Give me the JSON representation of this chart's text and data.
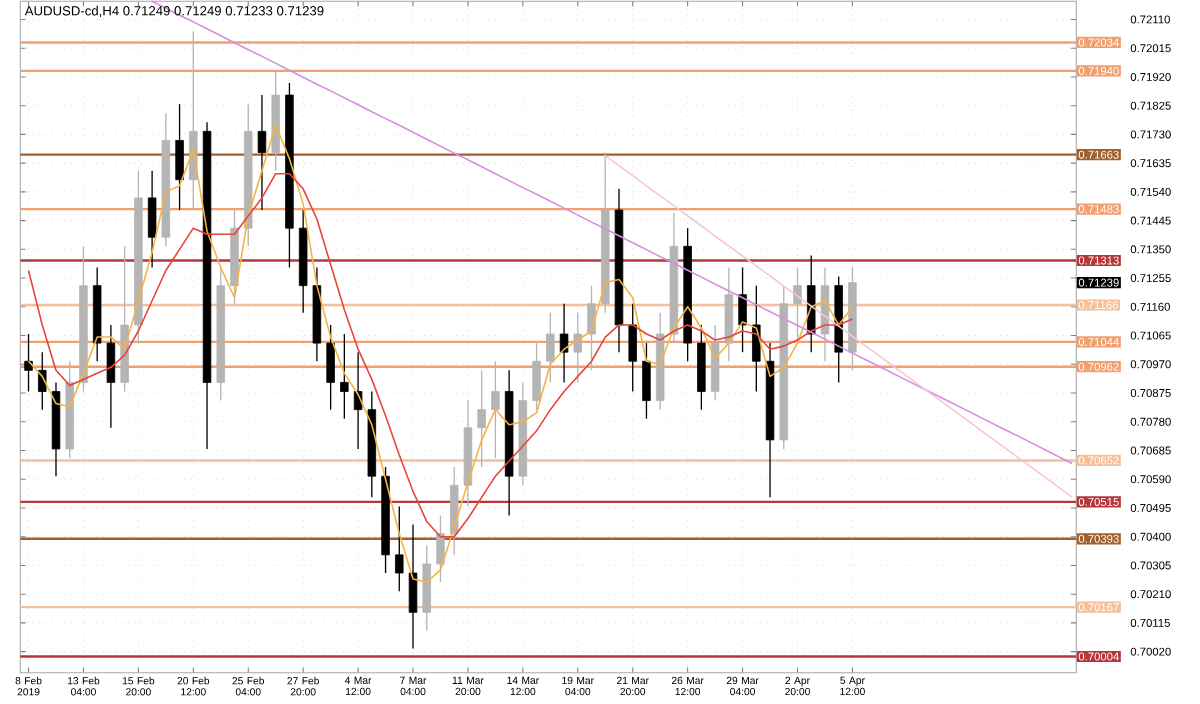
{
  "chart_data": {
    "type": "candlestick",
    "title": "AUDUSD-cd,H4  0.71249 0.71249 0.71233 0.71239",
    "categories": [
      "8 Feb 2019",
      null,
      null,
      null,
      "13 Feb 04:00",
      null,
      null,
      null,
      "15 Feb 20:00",
      null,
      null,
      null,
      "20 Feb 12:00",
      null,
      null,
      null,
      "25 Feb 04:00",
      null,
      null,
      null,
      "27 Feb 20:00",
      null,
      null,
      null,
      "4 Mar 12:00",
      null,
      null,
      null,
      "7 Mar 04:00",
      null,
      null,
      null,
      "11 Mar 20:00",
      null,
      null,
      null,
      "14 Mar 12:00",
      null,
      null,
      null,
      "19 Mar 04:00",
      null,
      null,
      null,
      "21 Mar 20:00",
      null,
      null,
      null,
      "26 Mar 12:00",
      null,
      null,
      null,
      "29 Mar 04:00",
      null,
      null,
      null,
      "2 Apr 20:00",
      null,
      null,
      null,
      "5 Apr 12:00",
      null,
      null,
      null,
      null,
      null,
      null,
      null,
      null,
      null,
      null,
      null,
      null,
      null,
      null,
      null,
      null
    ],
    "ohlc": [
      [
        0.7098,
        0.7107,
        0.7088,
        0.7095
      ],
      [
        0.7095,
        0.7101,
        0.7082,
        0.7088
      ],
      [
        0.7088,
        0.7091,
        0.706,
        0.7069
      ],
      [
        0.7069,
        0.7098,
        0.7066,
        0.7091
      ],
      [
        0.7091,
        0.7136,
        0.7088,
        0.7123
      ],
      [
        0.7123,
        0.7129,
        0.7098,
        0.7104
      ],
      [
        0.7104,
        0.711,
        0.7076,
        0.7091
      ],
      [
        0.7091,
        0.7136,
        0.7088,
        0.711
      ],
      [
        0.711,
        0.7161,
        0.7104,
        0.7152
      ],
      [
        0.7152,
        0.7161,
        0.7129,
        0.7139
      ],
      [
        0.7139,
        0.718,
        0.7136,
        0.7171
      ],
      [
        0.7171,
        0.7183,
        0.7148,
        0.7158
      ],
      [
        0.7158,
        0.7207,
        0.7148,
        0.7174
      ],
      [
        0.7174,
        0.7177,
        0.7069,
        0.7091
      ],
      [
        0.7091,
        0.7129,
        0.7085,
        0.7123
      ],
      [
        0.7123,
        0.7148,
        0.7117,
        0.7142
      ],
      [
        0.7142,
        0.7183,
        0.7136,
        0.7174
      ],
      [
        0.7174,
        0.7186,
        0.7148,
        0.7167
      ],
      [
        0.7167,
        0.7194,
        0.7161,
        0.7186
      ],
      [
        0.7186,
        0.719,
        0.7129,
        0.7142
      ],
      [
        0.7142,
        0.7148,
        0.7114,
        0.7123
      ],
      [
        0.7123,
        0.7129,
        0.7098,
        0.7104
      ],
      [
        0.7104,
        0.711,
        0.7082,
        0.7091
      ],
      [
        0.7091,
        0.7107,
        0.7079,
        0.7088
      ],
      [
        0.7088,
        0.7101,
        0.7069,
        0.7082
      ],
      [
        0.7082,
        0.7088,
        0.7053,
        0.706
      ],
      [
        0.706,
        0.7063,
        0.7028,
        0.7034
      ],
      [
        0.7034,
        0.705,
        0.7022,
        0.7028
      ],
      [
        0.7028,
        0.7044,
        0.7003,
        0.7015
      ],
      [
        0.7015,
        0.7037,
        0.7009,
        0.7031
      ],
      [
        0.7031,
        0.7047,
        0.7025,
        0.7041
      ],
      [
        0.7041,
        0.7063,
        0.7034,
        0.7057
      ],
      [
        0.7057,
        0.7085,
        0.705,
        0.7076
      ],
      [
        0.7076,
        0.7095,
        0.7063,
        0.7082
      ],
      [
        0.7082,
        0.7098,
        0.7066,
        0.7088
      ],
      [
        0.7088,
        0.7095,
        0.7047,
        0.706
      ],
      [
        0.706,
        0.7091,
        0.7057,
        0.7085
      ],
      [
        0.7085,
        0.7104,
        0.7082,
        0.7098
      ],
      [
        0.7098,
        0.7114,
        0.7091,
        0.7107
      ],
      [
        0.7107,
        0.7117,
        0.7091,
        0.7101
      ],
      [
        0.7101,
        0.7114,
        0.7091,
        0.7107
      ],
      [
        0.7107,
        0.7123,
        0.7095,
        0.7117
      ],
      [
        0.7117,
        0.7167,
        0.7114,
        0.7148
      ],
      [
        0.7148,
        0.7155,
        0.7101,
        0.711
      ],
      [
        0.711,
        0.7117,
        0.7088,
        0.7098
      ],
      [
        0.7098,
        0.7104,
        0.7079,
        0.7085
      ],
      [
        0.7085,
        0.7114,
        0.7082,
        0.7107
      ],
      [
        0.7107,
        0.7147,
        0.7104,
        0.7136
      ],
      [
        0.7136,
        0.7142,
        0.7098,
        0.7104
      ],
      [
        0.7104,
        0.711,
        0.7082,
        0.7088
      ],
      [
        0.7088,
        0.711,
        0.7085,
        0.7104
      ],
      [
        0.7104,
        0.7129,
        0.7098,
        0.712
      ],
      [
        0.712,
        0.7129,
        0.7101,
        0.711
      ],
      [
        0.711,
        0.7123,
        0.7088,
        0.7098
      ],
      [
        0.7098,
        0.7104,
        0.7053,
        0.7072
      ],
      [
        0.7072,
        0.7123,
        0.7069,
        0.7117
      ],
      [
        0.7117,
        0.7129,
        0.7104,
        0.7123
      ],
      [
        0.7123,
        0.7133,
        0.7101,
        0.7107
      ],
      [
        0.7107,
        0.7129,
        0.7098,
        0.7123
      ],
      [
        0.7123,
        0.7126,
        0.7091,
        0.7101
      ],
      [
        0.7101,
        0.7129,
        0.7095,
        0.7124
      ],
      null,
      null,
      null,
      null,
      null,
      null,
      null,
      null,
      null,
      null,
      null,
      null,
      null,
      null,
      null,
      null
    ],
    "colors": [
      "#000000",
      "#000000",
      "#000000",
      "#b4b4b4",
      "#b4b4b4",
      "#000000",
      "#000000",
      "#b4b4b4",
      "#b4b4b4",
      "#000000",
      "#b4b4b4",
      "#000000",
      "#b4b4b4",
      "#000000",
      "#b4b4b4",
      "#b4b4b4",
      "#b4b4b4",
      "#000000",
      "#b4b4b4",
      "#000000",
      "#000000",
      "#000000",
      "#000000",
      "#000000",
      "#000000",
      "#000000",
      "#000000",
      "#000000",
      "#000000",
      "#b4b4b4",
      "#b4b4b4",
      "#b4b4b4",
      "#b4b4b4",
      "#b4b4b4",
      "#b4b4b4",
      "#000000",
      "#b4b4b4",
      "#b4b4b4",
      "#b4b4b4",
      "#000000",
      "#b4b4b4",
      "#b4b4b4",
      "#b4b4b4",
      "#000000",
      "#000000",
      "#000000",
      "#b4b4b4",
      "#b4b4b4",
      "#000000",
      "#000000",
      "#b4b4b4",
      "#b4b4b4",
      "#000000",
      "#000000",
      "#000000",
      "#b4b4b4",
      "#b4b4b4",
      "#000000",
      "#b4b4b4",
      "#000000",
      "#b4b4b4",
      null,
      null,
      null,
      null,
      null,
      null,
      null,
      null,
      null,
      null,
      null,
      null,
      null,
      null,
      null,
      null
    ],
    "series": [
      {
        "type": "line",
        "color": "#f5b342",
        "values": [
          0.7098,
          0.7093,
          0.7084,
          0.7083,
          0.7094,
          0.7106,
          0.7106,
          0.7102,
          0.7118,
          0.7134,
          0.7154,
          0.7156,
          0.7168,
          0.7141,
          0.7129,
          0.7119,
          0.7146,
          0.7161,
          0.7176,
          0.7165,
          0.715,
          0.7123,
          0.7106,
          0.7094,
          0.7087,
          0.7077,
          0.7059,
          0.7041,
          0.7026,
          0.7025,
          0.7029,
          0.7043,
          0.7058,
          0.7072,
          0.7082,
          0.7077,
          0.7078,
          0.7081,
          0.7097,
          0.7102,
          0.7105,
          0.7108,
          0.7124,
          0.7125,
          0.7119,
          0.7098,
          0.7097,
          0.7109,
          0.7116,
          0.7109,
          0.7099,
          0.7104,
          0.7111,
          0.7109,
          0.7093,
          0.7096,
          0.7104,
          0.7116,
          0.7118,
          0.711,
          0.7116,
          null,
          null,
          null,
          null,
          null,
          null,
          null,
          null,
          null,
          null,
          null,
          null,
          null,
          null,
          null,
          null
        ]
      },
      {
        "type": "line",
        "color": "#e8443a",
        "values": [
          0.7128,
          0.711,
          0.7095,
          0.709,
          0.7092,
          0.7094,
          0.7096,
          0.71,
          0.7108,
          0.7118,
          0.7128,
          0.7135,
          0.7142,
          0.714,
          0.714,
          0.714,
          0.7146,
          0.7152,
          0.716,
          0.716,
          0.7155,
          0.7145,
          0.713,
          0.7115,
          0.7102,
          0.7092,
          0.708,
          0.7067,
          0.7055,
          0.7045,
          0.704,
          0.704,
          0.7046,
          0.7053,
          0.706,
          0.7065,
          0.707,
          0.7075,
          0.7082,
          0.7088,
          0.7093,
          0.7098,
          0.7106,
          0.711,
          0.711,
          0.7107,
          0.7105,
          0.7108,
          0.711,
          0.7108,
          0.7105,
          0.7106,
          0.7108,
          0.7107,
          0.7102,
          0.7103,
          0.7105,
          0.7108,
          0.711,
          0.711,
          0.7112,
          null,
          null,
          null,
          null,
          null,
          null,
          null,
          null,
          null,
          null,
          null,
          null,
          null,
          null,
          null,
          null
        ]
      },
      {
        "type": "line",
        "color": "#d98ce0",
        "values": [
          null,
          null,
          null,
          null,
          null,
          null,
          null,
          null,
          null,
          0.7217,
          0.72147,
          0.72124,
          0.72102,
          0.72079,
          0.72056,
          0.72033,
          0.7201,
          0.71988,
          0.71965,
          0.71942,
          0.71919,
          0.71896,
          0.71874,
          0.71851,
          0.71828,
          0.71805,
          0.71782,
          0.7176,
          0.71737,
          0.71714,
          0.71691,
          0.71668,
          0.71646,
          0.71623,
          0.716,
          0.71577,
          0.71554,
          0.71532,
          0.71509,
          0.71486,
          0.71463,
          0.7144,
          0.71418,
          0.71395,
          0.71372,
          0.71349,
          0.71326,
          0.71304,
          0.71281,
          0.71258,
          0.71235,
          0.71212,
          0.7119,
          0.71167,
          0.71144,
          0.71121,
          0.71098,
          0.71076,
          0.71053,
          0.7103,
          0.71007,
          0.70984,
          0.70962,
          0.70939,
          0.70916,
          0.70893,
          0.7087,
          0.70848,
          0.70825,
          0.70802,
          0.70779,
          0.70756,
          0.70734,
          0.70711,
          0.70688,
          0.70665,
          0.70642
        ]
      },
      {
        "type": "line",
        "color": "#f7c6cf",
        "values": [
          null,
          null,
          null,
          null,
          null,
          null,
          null,
          null,
          null,
          null,
          null,
          null,
          null,
          null,
          null,
          null,
          null,
          null,
          null,
          null,
          null,
          null,
          null,
          null,
          null,
          null,
          null,
          null,
          null,
          null,
          null,
          null,
          null,
          null,
          null,
          null,
          null,
          null,
          null,
          null,
          null,
          null,
          0.7166,
          0.71627,
          0.71594,
          0.7156,
          0.71527,
          0.71494,
          0.71461,
          0.71428,
          0.71394,
          0.71361,
          0.71328,
          0.71295,
          0.71262,
          0.71228,
          0.71195,
          0.71162,
          0.71129,
          0.71096,
          0.71062,
          0.71029,
          0.70996,
          0.70963,
          0.7093,
          0.70896,
          0.70863,
          0.7083,
          0.70797,
          0.70764,
          0.7073,
          0.70697,
          0.70664,
          0.70631,
          0.70598,
          0.70564,
          0.70531
        ]
      }
    ],
    "ylim": [
      0.6995,
      0.7217
    ],
    "yticks": [
      {
        "value": 0.7211,
        "label": "0.72110"
      },
      {
        "value": 0.72015,
        "label": "0.72015"
      },
      {
        "value": 0.7192,
        "label": "0.71920"
      },
      {
        "value": 0.71825,
        "label": "0.71825"
      },
      {
        "value": 0.7173,
        "label": "0.71730"
      },
      {
        "value": 0.71635,
        "label": "0.71635"
      },
      {
        "value": 0.7154,
        "label": "0.71540"
      },
      {
        "value": 0.71445,
        "label": "0.71445"
      },
      {
        "value": 0.7135,
        "label": "0.71350"
      },
      {
        "value": 0.71255,
        "label": "0.71255"
      },
      {
        "value": 0.7116,
        "label": "0.71160"
      },
      {
        "value": 0.71065,
        "label": "0.71065"
      },
      {
        "value": 0.7097,
        "label": "0.70970"
      },
      {
        "value": 0.70875,
        "label": "0.70875"
      },
      {
        "value": 0.7078,
        "label": "0.70780"
      },
      {
        "value": 0.70685,
        "label": "0.70685"
      },
      {
        "value": 0.7059,
        "label": "0.70590"
      },
      {
        "value": 0.70495,
        "label": "0.70495"
      },
      {
        "value": 0.704,
        "label": "0.70400"
      },
      {
        "value": 0.70305,
        "label": "0.70305"
      },
      {
        "value": 0.7021,
        "label": "0.70210"
      },
      {
        "value": 0.70115,
        "label": "0.70115"
      },
      {
        "value": 0.7002,
        "label": "0.70020"
      }
    ],
    "ref_lines": [
      {
        "axis": "y",
        "value": 0.72034,
        "label": "0.72034",
        "color": "#f0a070"
      },
      {
        "axis": "y",
        "value": 0.7194,
        "label": "0.71940",
        "color": "#f0a070"
      },
      {
        "axis": "y",
        "value": 0.71663,
        "label": "0.71663",
        "color": "#a0602d"
      },
      {
        "axis": "y",
        "value": 0.71483,
        "label": "0.71483",
        "color": "#f0a070"
      },
      {
        "axis": "y",
        "value": 0.71313,
        "label": "0.71313",
        "color": "#b5373a"
      },
      {
        "axis": "y",
        "value": 0.71166,
        "label": "0.71166",
        "color": "#f5c09a"
      },
      {
        "axis": "y",
        "value": 0.71044,
        "label": "0.71044",
        "color": "#f0a070"
      },
      {
        "axis": "y",
        "value": 0.70962,
        "label": "0.70962",
        "color": "#f0a070"
      },
      {
        "axis": "y",
        "value": 0.70652,
        "label": "0.70652",
        "color": "#f5c09a"
      },
      {
        "axis": "y",
        "value": 0.70515,
        "label": "0.70515",
        "color": "#b5373a"
      },
      {
        "axis": "y",
        "value": 0.70393,
        "label": "0.70393",
        "color": "#a0602d"
      },
      {
        "axis": "y",
        "value": 0.70167,
        "label": "0.70167",
        "color": "#f5c09a"
      },
      {
        "axis": "y",
        "value": 0.70004,
        "label": "0.70004",
        "color": "#b5373a"
      }
    ],
    "annotations": [
      "0.71239"
    ],
    "grid": true
  }
}
